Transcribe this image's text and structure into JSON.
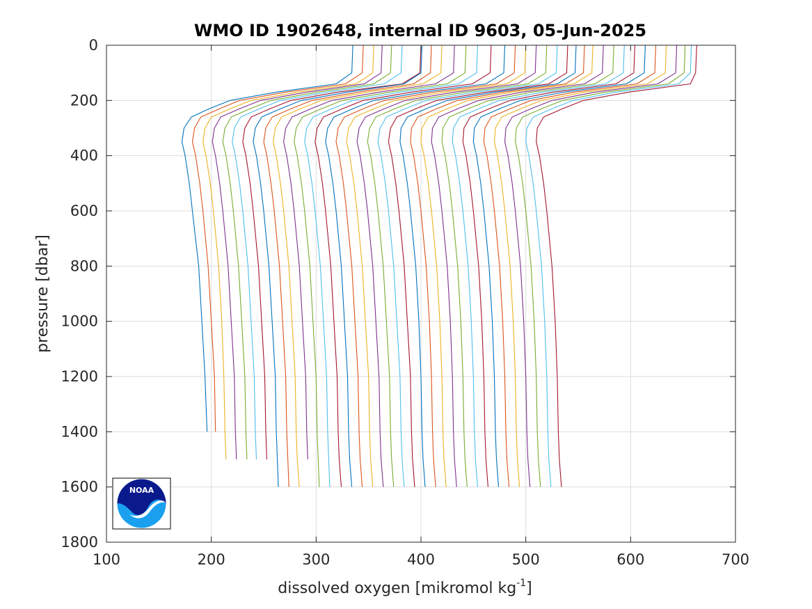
{
  "chart_data": {
    "type": "line",
    "title": "WMO ID 1902648, internal ID 9603, 05-Jun-2025",
    "xlabel_main": "dissolved oxygen [mikromol kg",
    "xlabel_sup": "-1",
    "xlabel_end": "]",
    "ylabel": "pressure [dbar]",
    "xlim": [
      100,
      700
    ],
    "ylim": [
      0,
      1800
    ],
    "y_reversed": true,
    "grid": true,
    "xticks": [
      "100",
      "200",
      "300",
      "400",
      "500",
      "600",
      "700"
    ],
    "yticks": [
      "0",
      "200",
      "400",
      "600",
      "800",
      "1000",
      "1200",
      "1400",
      "1600",
      "1800"
    ],
    "colors": [
      "#0072bd",
      "#d95319",
      "#edb120",
      "#7e2f8e",
      "#77ac30",
      "#4dbeee",
      "#a2142f"
    ],
    "pressure_levels": [
      0,
      100,
      140,
      170,
      200,
      230,
      260,
      300,
      350,
      400,
      500,
      600,
      800,
      1000,
      1200,
      1400,
      1500,
      1600
    ],
    "series": [
      {
        "x": [
          335,
          334,
          319,
          262,
          218,
          198,
          181,
          174,
          172,
          175,
          179,
          182,
          188,
          191,
          194,
          196
        ],
        "bottom": 1400
      },
      {
        "x": [
          345,
          344,
          328,
          271,
          227,
          208,
          190,
          184,
          182,
          185,
          189,
          192,
          197,
          200,
          203,
          204
        ],
        "bottom": 1400
      },
      {
        "x": [
          355,
          354,
          338,
          282,
          238,
          218,
          200,
          194,
          192,
          195,
          199,
          202,
          207,
          210,
          212,
          213,
          214
        ],
        "bottom": 1500
      },
      {
        "x": [
          363,
          362,
          346,
          291,
          247,
          227,
          209,
          203,
          201,
          204,
          208,
          211,
          216,
          219,
          222,
          223,
          224
        ],
        "bottom": 1500
      },
      {
        "x": [
          372,
          371,
          355,
          301,
          257,
          237,
          219,
          213,
          211,
          214,
          218,
          221,
          226,
          229,
          232,
          233,
          234
        ],
        "bottom": 1500
      },
      {
        "x": [
          382,
          381,
          365,
          310,
          266,
          246,
          228,
          222,
          220,
          223,
          227,
          230,
          235,
          238,
          241,
          242,
          243
        ],
        "bottom": 1500
      },
      {
        "x": [
          400,
          399,
          382,
          320,
          276,
          256,
          238,
          232,
          230,
          233,
          237,
          240,
          245,
          248,
          251,
          252,
          253
        ],
        "bottom": 1500
      },
      {
        "x": [
          401,
          400,
          384,
          330,
          286,
          266,
          248,
          242,
          240,
          243,
          247,
          250,
          255,
          258,
          261,
          262,
          263,
          264
        ]
      },
      {
        "x": [
          410,
          409,
          393,
          340,
          296,
          276,
          258,
          252,
          250,
          253,
          257,
          260,
          265,
          268,
          271,
          272,
          273,
          274
        ]
      },
      {
        "x": [
          420,
          419,
          402,
          349,
          305,
          285,
          267,
          261,
          259,
          262,
          266,
          269,
          274,
          277,
          280,
          281,
          282,
          284
        ]
      },
      {
        "x": [
          432,
          431,
          414,
          360,
          315,
          295,
          277,
          271,
          269,
          272,
          276,
          279,
          284,
          287,
          290,
          291,
          292
        ],
        "bottom": 1500
      },
      {
        "x": [
          443,
          442,
          425,
          370,
          325,
          305,
          287,
          281,
          279,
          282,
          286,
          289,
          294,
          297,
          300,
          301,
          302,
          303
        ]
      },
      {
        "x": [
          454,
          453,
          436,
          380,
          335,
          315,
          297,
          291,
          289,
          292,
          296,
          299,
          304,
          307,
          310,
          311,
          312,
          313
        ]
      },
      {
        "x": [
          467,
          466,
          449,
          391,
          345,
          325,
          307,
          301,
          299,
          302,
          306,
          309,
          314,
          317,
          320,
          321,
          322,
          324
        ]
      },
      {
        "x": [
          480,
          479,
          462,
          402,
          355,
          335,
          317,
          311,
          309,
          312,
          316,
          319,
          324,
          327,
          330,
          331,
          332,
          334
        ]
      },
      {
        "x": [
          490,
          489,
          472,
          412,
          365,
          345,
          327,
          321,
          319,
          322,
          326,
          329,
          334,
          337,
          340,
          341,
          342,
          344
        ]
      },
      {
        "x": [
          500,
          499,
          482,
          422,
          375,
          355,
          337,
          331,
          329,
          332,
          336,
          339,
          344,
          347,
          350,
          351,
          352,
          354
        ]
      },
      {
        "x": [
          510,
          509,
          492,
          432,
          385,
          365,
          347,
          341,
          339,
          342,
          346,
          349,
          354,
          357,
          360,
          361,
          362,
          364
        ]
      },
      {
        "x": [
          520,
          519,
          502,
          442,
          395,
          375,
          357,
          351,
          349,
          352,
          356,
          359,
          364,
          367,
          370,
          371,
          372,
          374
        ]
      },
      {
        "x": [
          530,
          529,
          512,
          452,
          405,
          385,
          367,
          361,
          359,
          362,
          366,
          369,
          374,
          377,
          380,
          381,
          382,
          384
        ]
      },
      {
        "x": [
          540,
          539,
          522,
          462,
          415,
          395,
          377,
          371,
          369,
          372,
          376,
          379,
          384,
          387,
          390,
          391,
          392,
          394
        ]
      },
      {
        "x": [
          548,
          547,
          530,
          470,
          425,
          405,
          387,
          381,
          380,
          383,
          387,
          390,
          395,
          398,
          400,
          401,
          402,
          404
        ]
      },
      {
        "x": [
          556,
          555,
          538,
          478,
          435,
          415,
          397,
          391,
          390,
          393,
          397,
          400,
          405,
          408,
          410,
          411,
          412,
          414
        ]
      },
      {
        "x": [
          564,
          563,
          546,
          486,
          445,
          425,
          407,
          401,
          400,
          403,
          407,
          410,
          415,
          418,
          420,
          421,
          422,
          424
        ]
      },
      {
        "x": [
          574,
          573,
          556,
          496,
          455,
          435,
          417,
          411,
          410,
          413,
          417,
          420,
          425,
          428,
          430,
          431,
          432,
          434
        ]
      },
      {
        "x": [
          584,
          583,
          566,
          506,
          465,
          445,
          427,
          421,
          420,
          423,
          427,
          430,
          435,
          438,
          440,
          441,
          442,
          444
        ]
      },
      {
        "x": [
          594,
          593,
          576,
          516,
          475,
          455,
          437,
          431,
          430,
          433,
          437,
          440,
          445,
          448,
          450,
          451,
          452,
          454
        ]
      },
      {
        "x": [
          604,
          603,
          586,
          526,
          485,
          465,
          447,
          441,
          440,
          443,
          447,
          450,
          455,
          458,
          460,
          461,
          462,
          464
        ]
      },
      {
        "x": [
          614,
          613,
          596,
          536,
          495,
          475,
          457,
          451,
          450,
          453,
          457,
          460,
          465,
          468,
          470,
          471,
          472,
          474
        ]
      },
      {
        "x": [
          624,
          623,
          606,
          546,
          505,
          485,
          467,
          461,
          460,
          463,
          467,
          470,
          475,
          478,
          480,
          481,
          482,
          484
        ]
      },
      {
        "x": [
          634,
          633,
          616,
          556,
          515,
          495,
          477,
          471,
          470,
          473,
          477,
          480,
          485,
          488,
          490,
          491,
          492,
          494
        ]
      },
      {
        "x": [
          644,
          643,
          626,
          566,
          525,
          505,
          487,
          481,
          480,
          483,
          487,
          490,
          495,
          498,
          500,
          501,
          502,
          504
        ]
      },
      {
        "x": [
          652,
          651,
          636,
          576,
          535,
          515,
          497,
          491,
          490,
          493,
          497,
          500,
          505,
          508,
          510,
          511,
          512,
          514
        ]
      },
      {
        "x": [
          658,
          657,
          646,
          586,
          545,
          525,
          507,
          501,
          500,
          503,
          507,
          510,
          515,
          518,
          520,
          521,
          522,
          524
        ]
      },
      {
        "x": [
          663,
          662,
          657,
          598,
          555,
          535,
          517,
          511,
          510,
          513,
          517,
          520,
          525,
          528,
          530,
          531,
          532,
          534
        ]
      }
    ]
  },
  "logo": {
    "text": "NOAA",
    "colors": {
      "navy": "#0a1a8c",
      "sky": "#1aa0ef"
    }
  }
}
